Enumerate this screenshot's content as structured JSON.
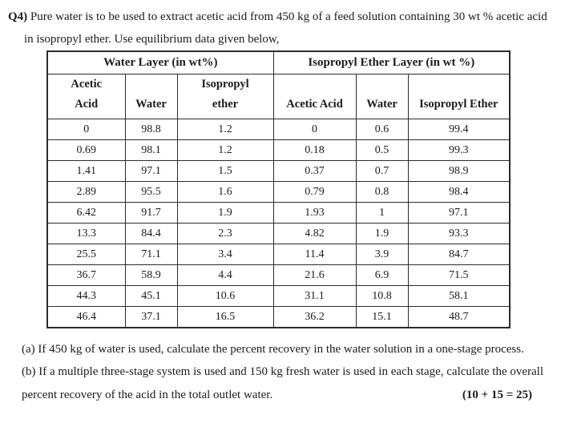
{
  "question": {
    "number": "Q4)",
    "line1": "Pure water is to be used to extract acetic acid from 450 kg of a feed solution containing 30 wt % acetic acid",
    "line2": "in isopropyl ether. Use equilibrium data given below,"
  },
  "table": {
    "groups": [
      {
        "label": "Water Layer (in wt%)"
      },
      {
        "label": "Isopropyl Ether Layer (in wt %)"
      }
    ],
    "columns": [
      [
        "Acetic",
        "Acid"
      ],
      [
        "Water"
      ],
      [
        "Isopropyl",
        "ether"
      ],
      [
        "Acetic Acid"
      ],
      [
        "Water"
      ],
      [
        "Isopropyl Ether"
      ]
    ],
    "rows": [
      [
        "0",
        "98.8",
        "1.2",
        "0",
        "0.6",
        "99.4"
      ],
      [
        "0.69",
        "98.1",
        "1.2",
        "0.18",
        "0.5",
        "99.3"
      ],
      [
        "1.41",
        "97.1",
        "1.5",
        "0.37",
        "0.7",
        "98.9"
      ],
      [
        "2.89",
        "95.5",
        "1.6",
        "0.79",
        "0.8",
        "98.4"
      ],
      [
        "6.42",
        "91.7",
        "1.9",
        "1.93",
        "1",
        "97.1"
      ],
      [
        "13.3",
        "84.4",
        "2.3",
        "4.82",
        "1.9",
        "93.3"
      ],
      [
        "25.5",
        "71.1",
        "3.4",
        "11.4",
        "3.9",
        "84.7"
      ],
      [
        "36.7",
        "58.9",
        "4.4",
        "21.6",
        "6.9",
        "71.5"
      ],
      [
        "44.3",
        "45.1",
        "10.6",
        "31.1",
        "10.8",
        "58.1"
      ],
      [
        "46.4",
        "37.1",
        "16.5",
        "36.2",
        "15.1",
        "48.7"
      ]
    ]
  },
  "parts": {
    "a": "(a) If 450 kg of water is used, calculate the percent recovery in the water solution in a one-stage process.",
    "b_line1": "(b) If a multiple three-stage system is used and 150 kg fresh water is used in each stage, calculate the overall",
    "b_line2": "percent recovery of the acid in the total outlet water.",
    "marks": "(10 + 15 = 25)"
  }
}
